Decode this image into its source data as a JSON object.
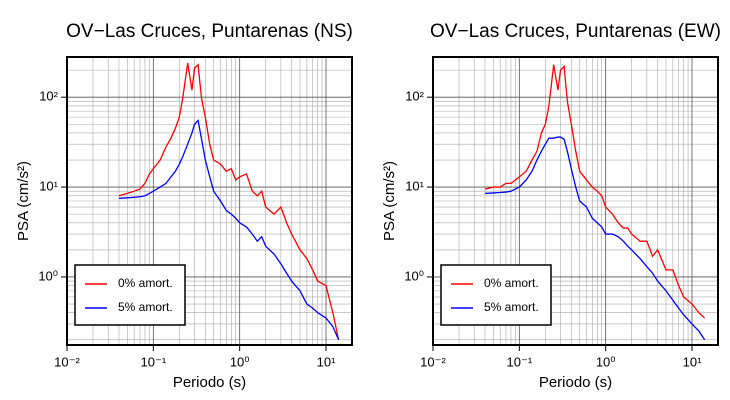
{
  "chart_data": [
    {
      "type": "line",
      "title": "OV−Las Cruces, Puntarenas (NS)",
      "x_label": "Periodo (s)",
      "y_label": "PSA (cm/s²)",
      "log_x": true,
      "log_y": true,
      "grid": true,
      "legend": "lower left",
      "xlim": [
        0.01,
        20
      ],
      "ylim": [
        0.175,
        280
      ],
      "xticks": [
        {
          "value": 0.01,
          "label": "10⁻²"
        },
        {
          "value": 0.1,
          "label": "10⁻¹"
        },
        {
          "value": 1,
          "label": "10⁰"
        },
        {
          "value": 10,
          "label": "10¹"
        }
      ],
      "yticks": [
        {
          "value": 1,
          "label": "10⁰"
        },
        {
          "value": 10,
          "label": "10¹"
        },
        {
          "value": 100,
          "label": "10²"
        }
      ],
      "xminorticks": [
        0.02,
        0.03,
        0.04,
        0.05,
        0.06,
        0.07,
        0.08,
        0.09,
        0.2,
        0.3,
        0.4,
        0.5,
        0.6,
        0.7,
        0.8,
        0.9,
        2,
        3,
        4,
        5,
        6,
        7,
        8,
        9
      ],
      "yminorticks": [
        0.2,
        0.3,
        0.4,
        0.5,
        0.6,
        0.7,
        0.8,
        0.9,
        2,
        3,
        4,
        5,
        6,
        7,
        8,
        9,
        20,
        30,
        40,
        50,
        60,
        70,
        80,
        90,
        200
      ],
      "x": [
        0.04,
        0.05,
        0.06,
        0.07,
        0.08,
        0.09,
        0.1,
        0.12,
        0.14,
        0.16,
        0.18,
        0.2,
        0.22,
        0.25,
        0.28,
        0.3,
        0.33,
        0.36,
        0.4,
        0.45,
        0.5,
        0.6,
        0.7,
        0.8,
        0.9,
        1.0,
        1.2,
        1.4,
        1.6,
        1.8,
        2.0,
        2.5,
        3.0,
        3.5,
        4.0,
        5.0,
        6.0,
        7.0,
        8.0,
        10,
        12,
        14
      ],
      "series": [
        {
          "name": "0% amort.",
          "color": "#ff0000",
          "values": [
            8,
            8.5,
            9,
            9.5,
            11,
            14,
            16,
            20,
            28,
            35,
            45,
            60,
            100,
            240,
            120,
            210,
            230,
            100,
            60,
            30,
            20,
            18,
            15,
            16,
            12,
            13,
            14,
            9,
            8,
            9,
            6,
            5,
            6,
            4,
            3,
            2,
            1.6,
            1.2,
            0.9,
            0.8,
            0.4,
            0.2
          ]
        },
        {
          "name": "5% amort.",
          "color": "#0000ff",
          "values": [
            7.5,
            7.6,
            7.7,
            7.8,
            8,
            8.5,
            9,
            10,
            11,
            13,
            15,
            18,
            22,
            30,
            40,
            50,
            55,
            35,
            20,
            13,
            9,
            7,
            5.5,
            5,
            4.5,
            4,
            3.6,
            3,
            2.5,
            2.8,
            2.2,
            1.8,
            1.4,
            1.1,
            0.9,
            0.7,
            0.5,
            0.45,
            0.4,
            0.35,
            0.28,
            0.2
          ]
        }
      ]
    },
    {
      "type": "line",
      "title": "OV−Las Cruces, Puntarenas (EW)",
      "x_label": "Periodo (s)",
      "y_label": "PSA (cm/s²)",
      "log_x": true,
      "log_y": true,
      "grid": true,
      "legend": "lower left",
      "xlim": [
        0.01,
        20
      ],
      "ylim": [
        0.175,
        280
      ],
      "xticks": [
        {
          "value": 0.01,
          "label": "10⁻²"
        },
        {
          "value": 0.1,
          "label": "10⁻¹"
        },
        {
          "value": 1,
          "label": "10⁰"
        },
        {
          "value": 10,
          "label": "10¹"
        }
      ],
      "yticks": [
        {
          "value": 1,
          "label": "10⁰"
        },
        {
          "value": 10,
          "label": "10¹"
        },
        {
          "value": 100,
          "label": "10²"
        }
      ],
      "xminorticks": [
        0.02,
        0.03,
        0.04,
        0.05,
        0.06,
        0.07,
        0.08,
        0.09,
        0.2,
        0.3,
        0.4,
        0.5,
        0.6,
        0.7,
        0.8,
        0.9,
        2,
        3,
        4,
        5,
        6,
        7,
        8,
        9
      ],
      "yminorticks": [
        0.2,
        0.3,
        0.4,
        0.5,
        0.6,
        0.7,
        0.8,
        0.9,
        2,
        3,
        4,
        5,
        6,
        7,
        8,
        9,
        20,
        30,
        40,
        50,
        60,
        70,
        80,
        90,
        200
      ],
      "x": [
        0.04,
        0.05,
        0.06,
        0.07,
        0.08,
        0.09,
        0.1,
        0.12,
        0.14,
        0.16,
        0.18,
        0.2,
        0.22,
        0.25,
        0.28,
        0.3,
        0.33,
        0.36,
        0.4,
        0.45,
        0.5,
        0.6,
        0.7,
        0.8,
        0.9,
        1.0,
        1.2,
        1.4,
        1.6,
        1.8,
        2.0,
        2.5,
        3.0,
        3.5,
        4.0,
        5.0,
        6.0,
        7.0,
        8.0,
        10,
        12,
        14
      ],
      "series": [
        {
          "name": "0% amort.",
          "color": "#ff0000",
          "values": [
            9.5,
            10,
            10,
            11,
            11,
            12,
            13,
            15,
            20,
            25,
            40,
            50,
            80,
            230,
            120,
            200,
            220,
            90,
            50,
            25,
            15,
            12,
            10,
            9,
            8,
            6,
            5,
            4,
            3.5,
            3.5,
            3,
            2.5,
            2.5,
            1.7,
            2,
            1.2,
            1.2,
            0.8,
            0.6,
            0.5,
            0.4,
            0.35
          ]
        },
        {
          "name": "5% amort.",
          "color": "#0000ff",
          "values": [
            8.5,
            8.6,
            8.7,
            8.8,
            9,
            9.5,
            10,
            12,
            15,
            20,
            25,
            30,
            35,
            35,
            36,
            36,
            34,
            25,
            16,
            10,
            7,
            6,
            4.5,
            4,
            3.6,
            3,
            3,
            2.8,
            2.5,
            2.2,
            2,
            1.6,
            1.3,
            1.1,
            0.9,
            0.7,
            0.55,
            0.45,
            0.38,
            0.3,
            0.25,
            0.2
          ]
        }
      ]
    }
  ]
}
